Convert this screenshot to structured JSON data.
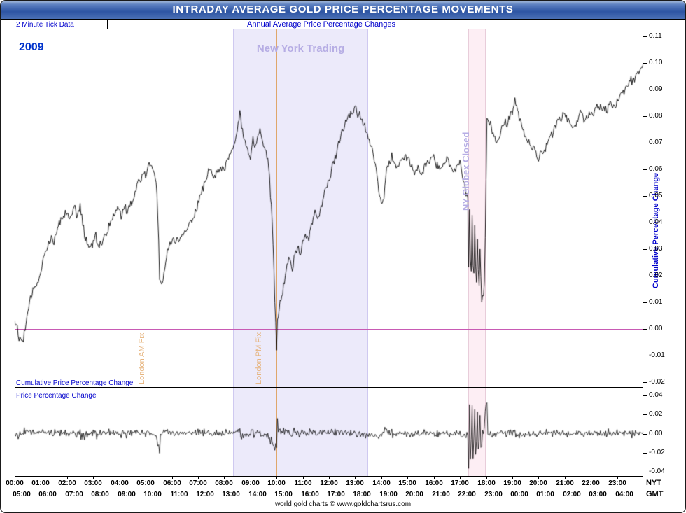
{
  "window": {
    "title": "INTRADAY AVERAGE GOLD PRICE PERCENTAGE MOVEMENTS"
  },
  "header": {
    "left_note": "2 Minute Tick Data",
    "center_note": "Annual Average Price Percentage Changes"
  },
  "annotations": {
    "year": "2009"
  },
  "footer": {
    "credit": "world gold charts © www.goldchartsrus.com"
  },
  "colors": {
    "header_note": "#0000cc",
    "year_text": "#0033cc",
    "trading_label_text": "#b6ade4",
    "band_fill": "#eceafa",
    "band_edge": "#cfc9f0",
    "globex_fill": "#fdeef4",
    "globex_edge": "#e8cdda",
    "fix_line": "#dfa76b",
    "fix_text": "#e6b47e",
    "zero_line": "#c85ab4",
    "series": "#000000"
  },
  "axes": {
    "x": {
      "row_labels": [
        "NYT",
        "GMT"
      ],
      "nyt": [
        "00:00",
        "01:00",
        "02:00",
        "03:00",
        "04:00",
        "05:00",
        "06:00",
        "07:00",
        "08:00",
        "09:00",
        "10:00",
        "11:00",
        "12:00",
        "13:00",
        "14:00",
        "15:00",
        "16:00",
        "17:00",
        "18:00",
        "19:00",
        "20:00",
        "21:00",
        "22:00",
        "23:00"
      ],
      "gmt": [
        "05:00",
        "06:00",
        "07:00",
        "08:00",
        "09:00",
        "10:00",
        "11:00",
        "12:00",
        "13:00",
        "14:00",
        "15:00",
        "16:00",
        "17:00",
        "18:00",
        "19:00",
        "20:00",
        "21:00",
        "22:00",
        "23:00",
        "00:00",
        "01:00",
        "02:00",
        "03:00",
        "04:00"
      ]
    }
  },
  "chart_data": [
    {
      "type": "line",
      "name": "cumulative-percentage-change",
      "label": "Cumulative Price Percentage Change",
      "ylabel": "Cumulative Percentage Change",
      "x_unit": "hour-of-day NYT",
      "x_range": [
        0,
        24
      ],
      "ylim": [
        -0.022,
        0.113
      ],
      "yticks": [
        "0.11",
        "0.10",
        "0.09",
        "0.08",
        "0.07",
        "0.06",
        "0.05",
        "0.04",
        "0.03",
        "0.02",
        "0.01",
        "0.00",
        "-0.01",
        "-0.02"
      ],
      "zero_line": 0.0,
      "samples_per_hour": 30,
      "noise_amplitude": 0.0016,
      "noise_seed": 12,
      "regions": [
        {
          "label": "New York Trading",
          "start_hour": 8.34,
          "end_hour": 13.5,
          "kind": "trading"
        },
        {
          "label": "NY Globex Closed",
          "start_hour": 17.33,
          "end_hour": 18.0,
          "kind": "globex"
        }
      ],
      "event_lines": [
        {
          "label": "London AM Fix",
          "hour": 5.53
        },
        {
          "label": "London PM Fix",
          "hour": 10.0
        }
      ],
      "keypoints": [
        [
          0,
          0.004
        ],
        [
          0.08,
          0.001
        ],
        [
          0.17,
          -0.003
        ],
        [
          0.3,
          -0.005
        ],
        [
          0.42,
          0.001
        ],
        [
          0.5,
          0.006
        ],
        [
          0.62,
          0.012
        ],
        [
          0.75,
          0.016
        ],
        [
          0.87,
          0.018
        ],
        [
          1,
          0.022
        ],
        [
          1.12,
          0.028
        ],
        [
          1.25,
          0.031
        ],
        [
          1.4,
          0.035
        ],
        [
          1.5,
          0.033
        ],
        [
          1.62,
          0.038
        ],
        [
          1.75,
          0.041
        ],
        [
          1.87,
          0.043
        ],
        [
          2,
          0.045
        ],
        [
          2.08,
          0.041
        ],
        [
          2.17,
          0.044
        ],
        [
          2.28,
          0.046
        ],
        [
          2.38,
          0.042
        ],
        [
          2.5,
          0.046
        ],
        [
          2.6,
          0.04
        ],
        [
          2.7,
          0.034
        ],
        [
          2.85,
          0.031
        ],
        [
          3,
          0.032
        ],
        [
          3.1,
          0.035
        ],
        [
          3.2,
          0.031
        ],
        [
          3.33,
          0.033
        ],
        [
          3.5,
          0.036
        ],
        [
          3.63,
          0.04
        ],
        [
          3.78,
          0.043
        ],
        [
          3.9,
          0.045
        ],
        [
          4,
          0.046
        ],
        [
          4.08,
          0.042
        ],
        [
          4.18,
          0.047
        ],
        [
          4.28,
          0.044
        ],
        [
          4.4,
          0.046
        ],
        [
          4.5,
          0.049
        ],
        [
          4.6,
          0.052
        ],
        [
          4.7,
          0.055
        ],
        [
          4.82,
          0.057
        ],
        [
          4.92,
          0.059
        ],
        [
          5,
          0.058
        ],
        [
          5.1,
          0.062
        ],
        [
          5.2,
          0.063
        ],
        [
          5.3,
          0.059
        ],
        [
          5.4,
          0.055
        ],
        [
          5.45,
          0.048
        ],
        [
          5.5,
          0.032
        ],
        [
          5.53,
          0.018
        ],
        [
          5.62,
          0.017
        ],
        [
          5.72,
          0.023
        ],
        [
          5.83,
          0.029
        ],
        [
          6,
          0.033
        ],
        [
          6.15,
          0.034
        ],
        [
          6.3,
          0.034
        ],
        [
          6.5,
          0.036
        ],
        [
          6.7,
          0.04
        ],
        [
          6.9,
          0.044
        ],
        [
          7,
          0.047
        ],
        [
          7.1,
          0.05
        ],
        [
          7.25,
          0.055
        ],
        [
          7.4,
          0.059
        ],
        [
          7.5,
          0.061
        ],
        [
          7.6,
          0.058
        ],
        [
          7.75,
          0.059
        ],
        [
          7.9,
          0.061
        ],
        [
          8,
          0.06
        ],
        [
          8.1,
          0.063
        ],
        [
          8.25,
          0.066
        ],
        [
          8.4,
          0.07
        ],
        [
          8.5,
          0.075
        ],
        [
          8.6,
          0.081
        ],
        [
          8.7,
          0.074
        ],
        [
          8.8,
          0.07
        ],
        [
          8.9,
          0.066
        ],
        [
          9,
          0.064
        ],
        [
          9.1,
          0.071
        ],
        [
          9.2,
          0.069
        ],
        [
          9.3,
          0.073
        ],
        [
          9.4,
          0.075
        ],
        [
          9.5,
          0.07
        ],
        [
          9.6,
          0.067
        ],
        [
          9.7,
          0.061
        ],
        [
          9.8,
          0.046
        ],
        [
          9.87,
          0.032
        ],
        [
          9.93,
          0.012
        ],
        [
          9.97,
          0.002
        ],
        [
          10,
          -0.009
        ],
        [
          10.03,
          0.004
        ],
        [
          10.1,
          0.008
        ],
        [
          10.2,
          0.013
        ],
        [
          10.3,
          0.018
        ],
        [
          10.4,
          0.024
        ],
        [
          10.5,
          0.027
        ],
        [
          10.6,
          0.023
        ],
        [
          10.7,
          0.028
        ],
        [
          10.8,
          0.031
        ],
        [
          10.9,
          0.028
        ],
        [
          11,
          0.032
        ],
        [
          11.1,
          0.036
        ],
        [
          11.2,
          0.033
        ],
        [
          11.3,
          0.038
        ],
        [
          11.4,
          0.042
        ],
        [
          11.5,
          0.044
        ],
        [
          11.6,
          0.042
        ],
        [
          11.7,
          0.046
        ],
        [
          11.8,
          0.05
        ],
        [
          11.9,
          0.053
        ],
        [
          12,
          0.056
        ],
        [
          12.1,
          0.06
        ],
        [
          12.2,
          0.063
        ],
        [
          12.3,
          0.067
        ],
        [
          12.4,
          0.071
        ],
        [
          12.5,
          0.075
        ],
        [
          12.6,
          0.077
        ],
        [
          12.7,
          0.079
        ],
        [
          12.8,
          0.081
        ],
        [
          12.9,
          0.08
        ],
        [
          13,
          0.084
        ],
        [
          13.1,
          0.079
        ],
        [
          13.2,
          0.081
        ],
        [
          13.3,
          0.078
        ],
        [
          13.4,
          0.075
        ],
        [
          13.5,
          0.072
        ],
        [
          13.6,
          0.069
        ],
        [
          13.7,
          0.065
        ],
        [
          13.8,
          0.06
        ],
        [
          13.9,
          0.052
        ],
        [
          14,
          0.049
        ],
        [
          14.08,
          0.047
        ],
        [
          14.17,
          0.058
        ],
        [
          14.3,
          0.063
        ],
        [
          14.4,
          0.065
        ],
        [
          14.5,
          0.063
        ],
        [
          14.6,
          0.061
        ],
        [
          14.75,
          0.063
        ],
        [
          14.9,
          0.064
        ],
        [
          15,
          0.065
        ],
        [
          15.1,
          0.062
        ],
        [
          15.25,
          0.059
        ],
        [
          15.4,
          0.061
        ],
        [
          15.5,
          0.058
        ],
        [
          15.6,
          0.06
        ],
        [
          15.75,
          0.062
        ],
        [
          15.9,
          0.064
        ],
        [
          16,
          0.065
        ],
        [
          16.1,
          0.062
        ],
        [
          16.25,
          0.06
        ],
        [
          16.4,
          0.063
        ],
        [
          16.5,
          0.065
        ],
        [
          16.6,
          0.062
        ],
        [
          16.75,
          0.059
        ],
        [
          16.9,
          0.061
        ],
        [
          17,
          0.062
        ],
        [
          17.1,
          0.057
        ],
        [
          17.2,
          0.052
        ],
        [
          17.3,
          0.05
        ],
        [
          17.33,
          0.02
        ],
        [
          17.37,
          0.046
        ],
        [
          17.42,
          0.015
        ],
        [
          17.47,
          0.044
        ],
        [
          17.52,
          0.013
        ],
        [
          17.57,
          0.04
        ],
        [
          17.62,
          0.012
        ],
        [
          17.67,
          0.036
        ],
        [
          17.72,
          0.011
        ],
        [
          17.77,
          0.033
        ],
        [
          17.82,
          0.01
        ],
        [
          17.87,
          0.014
        ],
        [
          17.92,
          0.012
        ],
        [
          17.97,
          0.035
        ],
        [
          18,
          0.056
        ],
        [
          18.03,
          0.08
        ],
        [
          18.1,
          0.079
        ],
        [
          18.2,
          0.076
        ],
        [
          18.3,
          0.073
        ],
        [
          18.4,
          0.071
        ],
        [
          18.5,
          0.073
        ],
        [
          18.6,
          0.076
        ],
        [
          18.7,
          0.078
        ],
        [
          18.8,
          0.077
        ],
        [
          18.9,
          0.08
        ],
        [
          19,
          0.082
        ],
        [
          19.1,
          0.086
        ],
        [
          19.2,
          0.083
        ],
        [
          19.3,
          0.078
        ],
        [
          19.4,
          0.075
        ],
        [
          19.5,
          0.073
        ],
        [
          19.6,
          0.071
        ],
        [
          19.75,
          0.069
        ],
        [
          19.9,
          0.066
        ],
        [
          20,
          0.064
        ],
        [
          20.1,
          0.066
        ],
        [
          20.25,
          0.068
        ],
        [
          20.4,
          0.071
        ],
        [
          20.5,
          0.073
        ],
        [
          20.6,
          0.075
        ],
        [
          20.75,
          0.078
        ],
        [
          20.9,
          0.08
        ],
        [
          21,
          0.082
        ],
        [
          21.1,
          0.079
        ],
        [
          21.2,
          0.077
        ],
        [
          21.3,
          0.075
        ],
        [
          21.4,
          0.077
        ],
        [
          21.5,
          0.079
        ],
        [
          21.6,
          0.081
        ],
        [
          21.75,
          0.079
        ],
        [
          21.9,
          0.081
        ],
        [
          22,
          0.082
        ],
        [
          22.1,
          0.08
        ],
        [
          22.2,
          0.083
        ],
        [
          22.3,
          0.085
        ],
        [
          22.4,
          0.082
        ],
        [
          22.5,
          0.084
        ],
        [
          22.6,
          0.082
        ],
        [
          22.75,
          0.085
        ],
        [
          22.9,
          0.083
        ],
        [
          23,
          0.086
        ],
        [
          23.1,
          0.088
        ],
        [
          23.2,
          0.09
        ],
        [
          23.3,
          0.089
        ],
        [
          23.4,
          0.092
        ],
        [
          23.5,
          0.094
        ],
        [
          23.6,
          0.093
        ],
        [
          23.75,
          0.096
        ],
        [
          23.9,
          0.098
        ],
        [
          24,
          0.101
        ]
      ]
    },
    {
      "type": "line",
      "name": "price-percentage-change",
      "label": "Price Percentage Change",
      "ylim": [
        -0.045,
        0.045
      ],
      "yticks": [
        "0.04",
        "0.02",
        "0.00",
        "-0.02",
        "-0.04"
      ],
      "derived_from": "first differences of cumulative series",
      "derived_scale": 1.4,
      "clamp": 0.042
    }
  ]
}
